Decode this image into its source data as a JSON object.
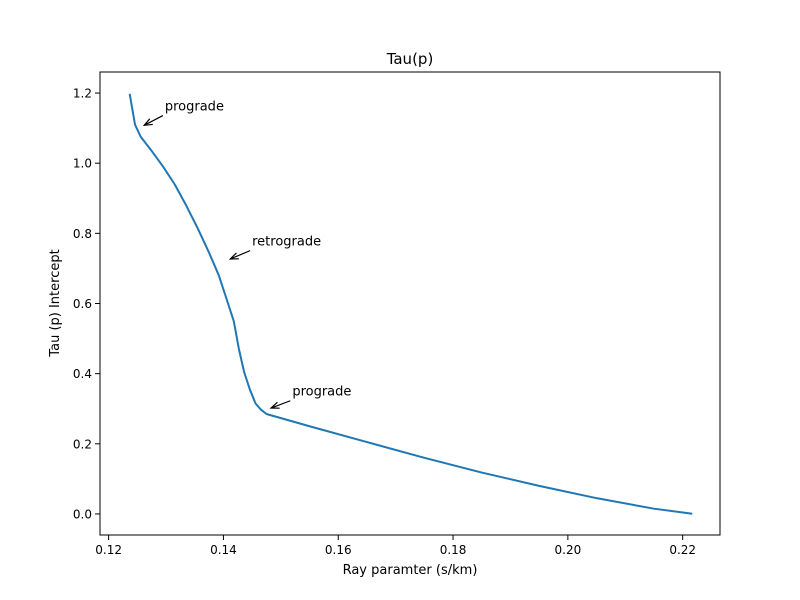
{
  "chart_data": {
    "type": "line",
    "title": "Tau(p)",
    "xlabel": "Ray paramter (s/km)",
    "ylabel": "Tau (p) Intercept",
    "xlim": [
      0.1185,
      0.2265
    ],
    "ylim": [
      -0.06,
      1.26
    ],
    "xticks": [
      0.12,
      0.14,
      0.16,
      0.18,
      0.2,
      0.22
    ],
    "xtick_labels": [
      "0.12",
      "0.14",
      "0.16",
      "0.18",
      "0.20",
      "0.22"
    ],
    "yticks": [
      0.0,
      0.2,
      0.4,
      0.6,
      0.8,
      1.0,
      1.2
    ],
    "ytick_labels": [
      "0.0",
      "0.2",
      "0.4",
      "0.6",
      "0.8",
      "1.0",
      "1.2"
    ],
    "grid": false,
    "series": [
      {
        "color": "#1f77b4",
        "x": [
          0.1237,
          0.1246,
          0.1256,
          0.1275,
          0.1295,
          0.1315,
          0.1335,
          0.1355,
          0.1375,
          0.1392,
          0.1405,
          0.1418,
          0.1427,
          0.1436,
          0.1446,
          0.1456,
          0.1465,
          0.1475,
          0.155,
          0.165,
          0.175,
          0.185,
          0.195,
          0.205,
          0.215,
          0.2215
        ],
        "y": [
          1.195,
          1.11,
          1.075,
          1.035,
          0.99,
          0.94,
          0.88,
          0.815,
          0.745,
          0.68,
          0.615,
          0.55,
          0.47,
          0.405,
          0.355,
          0.315,
          0.298,
          0.285,
          0.25,
          0.205,
          0.16,
          0.118,
          0.08,
          0.045,
          0.015,
          0.001
        ]
      }
    ],
    "annotations": [
      {
        "text": "prograde",
        "text_at": [
          0.1298,
          1.15
        ],
        "arrow_to": [
          0.1262,
          1.108
        ]
      },
      {
        "text": "retrograde",
        "text_at": [
          0.145,
          0.765
        ],
        "arrow_to": [
          0.1412,
          0.727
        ]
      },
      {
        "text": "prograde",
        "text_at": [
          0.152,
          0.337
        ],
        "arrow_to": [
          0.1483,
          0.302
        ]
      }
    ]
  }
}
